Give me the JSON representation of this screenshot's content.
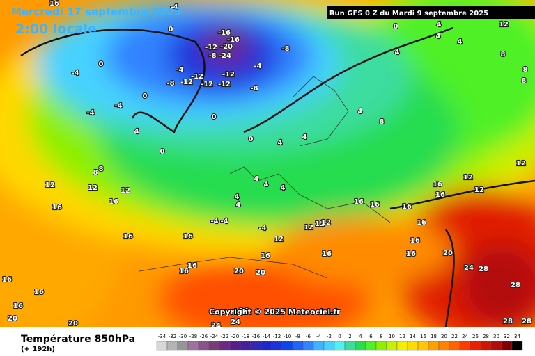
{
  "header": {
    "date": "Mercredi 17 septembre 2025",
    "time": "2:00 locale",
    "run": "Run GFS 0 Z du Mardi 9 septembre 2025"
  },
  "footer": {
    "title": "Température 850hPa",
    "lead": "(+ 192h)",
    "copyright": "Copyright © 2025 Meteociel.fr"
  },
  "legend": {
    "values": [
      -34,
      -32,
      -30,
      -28,
      -26,
      -24,
      -22,
      -20,
      -18,
      -16,
      -14,
      -12,
      -10,
      -8,
      -6,
      -4,
      -2,
      0,
      2,
      4,
      6,
      8,
      10,
      12,
      14,
      16,
      18,
      20,
      22,
      24,
      26,
      28,
      30,
      32,
      34
    ],
    "colors": [
      "#d8d8d8",
      "#b4b4b4",
      "#969696",
      "#a070a0",
      "#8c508c",
      "#783c78",
      "#6e2a82",
      "#5a1e8c",
      "#461ea0",
      "#3228b4",
      "#1e28c8",
      "#1e32dc",
      "#0a46f0",
      "#1e64ff",
      "#3282ff",
      "#3cb4ff",
      "#46d2ff",
      "#50f0f0",
      "#3cdca0",
      "#28dc50",
      "#50f028",
      "#8cf000",
      "#c8f000",
      "#f0f000",
      "#ffdc00",
      "#ffc800",
      "#ffa000",
      "#ff8200",
      "#ff6400",
      "#ff3c00",
      "#f01e00",
      "#d21400",
      "#b40a0a",
      "#820000",
      "#000000"
    ]
  },
  "map_labels": [
    "16",
    "-4",
    "0",
    "-16",
    "-16",
    "-20",
    "-24",
    "-12",
    "-8",
    "-12",
    "-12",
    "-12",
    "-12",
    "-12",
    "-8",
    "-4",
    "-4",
    "-8",
    "-8",
    "-4",
    "0",
    "0",
    "-4",
    "-4",
    "4",
    "0",
    "0",
    "0",
    "4",
    "4",
    "4",
    "8",
    "4",
    "0",
    "4",
    "4",
    "4",
    "12",
    "8",
    "8",
    "8",
    "12",
    "12",
    "12",
    "16",
    "16",
    "16",
    "16",
    "16",
    "16",
    "16",
    "16",
    "16",
    "20",
    "24",
    "28",
    "28",
    "28",
    "28",
    "4",
    "4",
    "4",
    "4",
    "4",
    "-4",
    "-4",
    "-4",
    "12",
    "12",
    "12",
    "12",
    "16",
    "20",
    "20",
    "16",
    "16",
    "16",
    "16",
    "16",
    "16",
    "12",
    "12",
    "12",
    "8",
    "8",
    "16",
    "16",
    "16",
    "20",
    "20",
    "24",
    "24",
    "24"
  ]
}
